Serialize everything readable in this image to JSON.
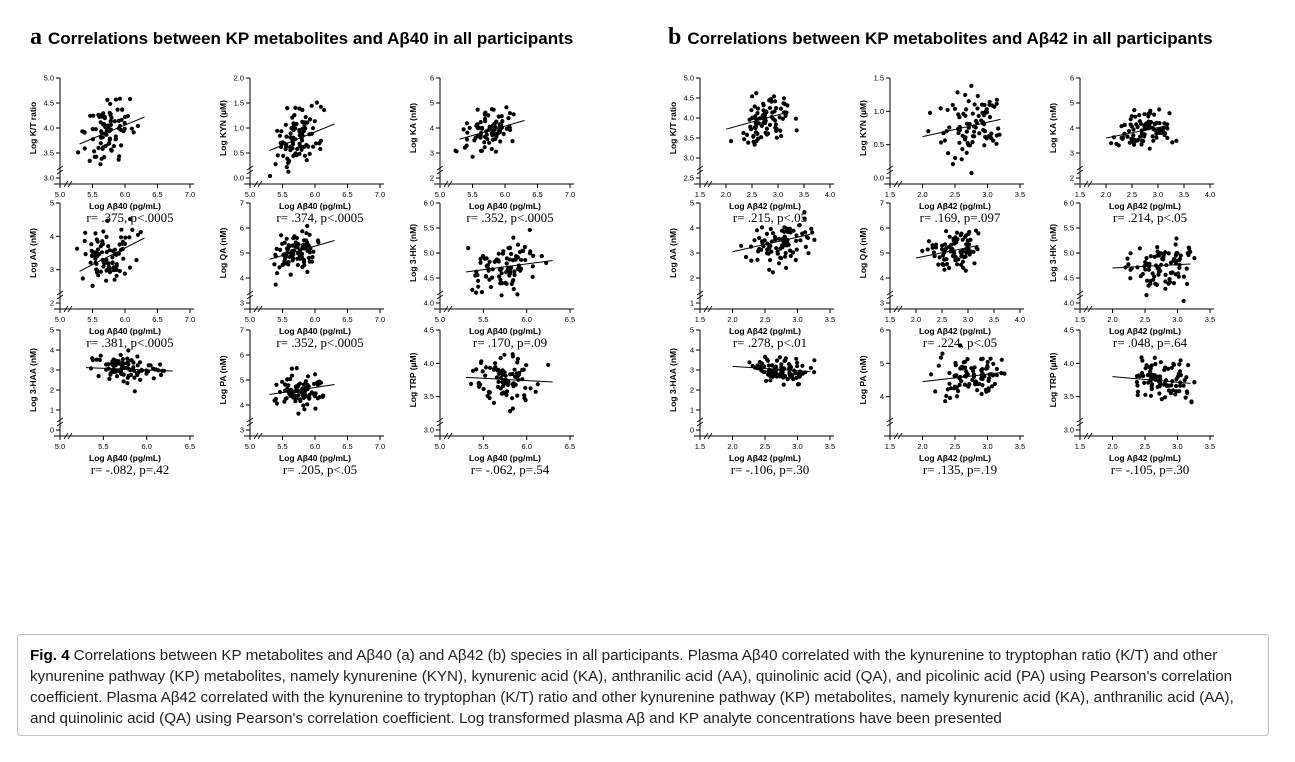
{
  "panels": {
    "a": {
      "letter": "a",
      "title": "Correlations between KP metabolites and Aβ40 in all participants"
    },
    "b": {
      "letter": "b",
      "title": "Correlations between KP metabolites and Aβ42 in all participants"
    }
  },
  "caption": {
    "label": "Fig. 4",
    "text": "Correlations between KP metabolites and Aβ40 (a) and Aβ42 (b) species in all participants. Plasma Aβ40 correlated with the kynurenine to tryptophan ratio (K/T) and other kynurenine pathway (KP) metabolites, namely kynurenine (KYN), kynurenic acid (KA), anthranilic acid (AA), quinolinic acid (QA), and picolinic acid (PA) using Pearson's correlation coefficient. Plasma Aβ42 correlated with the kynurenine to tryptophan (K/T) ratio and other kynurenine pathway (KP) metabolites, namely kynurenic acid (KA), anthranilic acid (AA), and quinolinic acid (QA) using Pearson's correlation coefficient. Log transformed plasma Aβ and KP analyte concentrations have been presented"
  },
  "chart_data": [
    {
      "id": "a-kt",
      "panel": "a",
      "type": "scatter",
      "xlabel": "Log Aβ40 (pg/mL)",
      "ylabel": "Log K/T ratio",
      "xlim": [
        5.0,
        7.0
      ],
      "ylim": [
        3.0,
        5.0
      ],
      "xticks": [
        "5.0",
        "5.5",
        "6.0",
        "6.5",
        "7.0"
      ],
      "yticks": [
        "3.0",
        "3.5",
        "4.0",
        "4.5",
        "5.0"
      ],
      "x_center": 5.75,
      "x_spread": 0.18,
      "y_center": 3.95,
      "y_spread": 0.28,
      "fit": [
        [
          5.3,
          3.68
        ],
        [
          6.3,
          4.22
        ]
      ],
      "annotation": "r= .375, p<.0005"
    },
    {
      "id": "a-kyn",
      "panel": "a",
      "type": "scatter",
      "xlabel": "Log Aβ40 (pg/mL)",
      "ylabel": "Log KYN (µM)",
      "xlim": [
        5.0,
        7.0
      ],
      "ylim": [
        0.0,
        2.0
      ],
      "xticks": [
        "5.0",
        "5.5",
        "6.0",
        "6.5",
        "7.0"
      ],
      "yticks": [
        "0.0",
        "0.5",
        "1.0",
        "1.5",
        "2.0"
      ],
      "x_center": 5.75,
      "x_spread": 0.18,
      "y_center": 0.8,
      "y_spread": 0.28,
      "fit": [
        [
          5.3,
          0.55
        ],
        [
          6.3,
          1.08
        ]
      ],
      "annotation": "r= .374, p<.0005"
    },
    {
      "id": "a-ka",
      "panel": "a",
      "type": "scatter",
      "xlabel": "Log Aβ40 (pg/mL)",
      "ylabel": "Log KA (nM)",
      "xlim": [
        5.0,
        7.0
      ],
      "ylim": [
        2,
        6
      ],
      "xticks": [
        "5.0",
        "5.5",
        "6.0",
        "6.5",
        "7.0"
      ],
      "yticks": [
        "2",
        "3",
        "4",
        "5",
        "6"
      ],
      "x_center": 5.75,
      "x_spread": 0.18,
      "y_center": 3.85,
      "y_spread": 0.4,
      "fit": [
        [
          5.3,
          3.55
        ],
        [
          6.3,
          4.3
        ]
      ],
      "annotation": "r= .352, p<.0005"
    },
    {
      "id": "a-aa",
      "panel": "a",
      "type": "scatter",
      "xlabel": "Log Aβ40 (pg/mL)",
      "ylabel": "Log AA (nM)",
      "xlim": [
        5.0,
        7.0
      ],
      "ylim": [
        2,
        5
      ],
      "xticks": [
        "5.0",
        "5.5",
        "6.0",
        "6.5",
        "7.0"
      ],
      "yticks": [
        "2",
        "3",
        "4",
        "5"
      ],
      "x_center": 5.75,
      "x_spread": 0.18,
      "y_center": 3.45,
      "y_spread": 0.45,
      "fit": [
        [
          5.3,
          2.95
        ],
        [
          6.3,
          3.95
        ]
      ],
      "annotation": "r= .381, p<.0005"
    },
    {
      "id": "a-qa",
      "panel": "a",
      "type": "scatter",
      "xlabel": "Log Aβ40 (pg/mL)",
      "ylabel": "Log QA (nM)",
      "xlim": [
        5.0,
        7.0
      ],
      "ylim": [
        3,
        7
      ],
      "xticks": [
        "5.0",
        "5.5",
        "6.0",
        "6.5",
        "7.0"
      ],
      "yticks": [
        "3",
        "4",
        "5",
        "6",
        "7"
      ],
      "x_center": 5.75,
      "x_spread": 0.18,
      "y_center": 5.05,
      "y_spread": 0.4,
      "fit": [
        [
          5.3,
          4.75
        ],
        [
          6.3,
          5.5
        ]
      ],
      "annotation": "r= .352, p<.0005"
    },
    {
      "id": "a-3hk",
      "panel": "a",
      "type": "scatter",
      "xlabel": "Log Aβ40 (pg/mL)",
      "ylabel": "Log 3-HK (nM)",
      "xlim": [
        5.0,
        6.5
      ],
      "ylim": [
        4.0,
        6.0
      ],
      "xticks": [
        "5.0",
        "5.5",
        "6.0",
        "6.5"
      ],
      "yticks": [
        "4.0",
        "4.5",
        "5.0",
        "5.5",
        "6.0"
      ],
      "x_center": 5.75,
      "x_spread": 0.2,
      "y_center": 4.72,
      "y_spread": 0.25,
      "fit": [
        [
          5.3,
          4.62
        ],
        [
          6.3,
          4.85
        ]
      ],
      "annotation": "r= .170, p=.09"
    },
    {
      "id": "a-3haa",
      "panel": "a",
      "type": "scatter",
      "xlabel": "Log Aβ40 (pg/mL)",
      "ylabel": "Log 3-HAA (nM)",
      "xlim": [
        5.0,
        6.5
      ],
      "ylim": [
        0,
        5
      ],
      "xticks": [
        "5.0",
        "5.5",
        "6.0",
        "6.5"
      ],
      "yticks": [
        "0",
        "1",
        "2",
        "3",
        "4",
        "5"
      ],
      "x_center": 5.75,
      "x_spread": 0.2,
      "y_center": 3.05,
      "y_spread": 0.35,
      "fit": [
        [
          5.3,
          3.12
        ],
        [
          6.3,
          2.95
        ]
      ],
      "annotation": "r= -.082, p=.42"
    },
    {
      "id": "a-pa",
      "panel": "a",
      "type": "scatter",
      "xlabel": "Log Aβ40 (pg/mL)",
      "ylabel": "Log PA (nM)",
      "xlim": [
        5.0,
        7.0
      ],
      "ylim": [
        3,
        7
      ],
      "xticks": [
        "5.0",
        "5.5",
        "6.0",
        "6.5",
        "7.0"
      ],
      "yticks": [
        "3",
        "4",
        "5",
        "6",
        "7"
      ],
      "x_center": 5.75,
      "x_spread": 0.18,
      "y_center": 4.55,
      "y_spread": 0.35,
      "fit": [
        [
          5.3,
          4.42
        ],
        [
          6.3,
          4.82
        ]
      ],
      "annotation": "r= .205, p<.05"
    },
    {
      "id": "a-trp",
      "panel": "a",
      "type": "scatter",
      "xlabel": "Log Aβ40 (pg/mL)",
      "ylabel": "Log TRP (µM)",
      "xlim": [
        5.0,
        6.5
      ],
      "ylim": [
        3.0,
        4.5
      ],
      "xticks": [
        "5.0",
        "5.5",
        "6.0",
        "6.5"
      ],
      "yticks": [
        "3.0",
        "3.5",
        "4.0",
        "4.5"
      ],
      "x_center": 5.75,
      "x_spread": 0.2,
      "y_center": 3.78,
      "y_spread": 0.18,
      "fit": [
        [
          5.3,
          3.79
        ],
        [
          6.3,
          3.72
        ]
      ],
      "annotation": "r= -.062, p=.54"
    },
    {
      "id": "b-kt",
      "panel": "b",
      "type": "scatter",
      "xlabel": "Log Aβ42 (pg/mL)",
      "ylabel": "Log K/T ratio",
      "xlim": [
        1.5,
        4.0
      ],
      "ylim": [
        2.5,
        5.0
      ],
      "xticks": [
        "1.5",
        "2.0",
        "2.5",
        "3.0",
        "3.5",
        "4.0"
      ],
      "yticks": [
        "2.5",
        "3.0",
        "3.5",
        "4.0",
        "4.5",
        "5.0"
      ],
      "x_center": 2.75,
      "x_spread": 0.25,
      "y_center": 3.95,
      "y_spread": 0.28,
      "fit": [
        [
          2.0,
          3.72
        ],
        [
          3.2,
          4.15
        ]
      ],
      "annotation": "r= .215, p<.05"
    },
    {
      "id": "b-kyn",
      "panel": "b",
      "type": "scatter",
      "xlabel": "Log Aβ42 (pg/mL)",
      "ylabel": "Log KYN (µM)",
      "xlim": [
        1.5,
        3.5
      ],
      "ylim": [
        0.0,
        1.5
      ],
      "xticks": [
        "1.5",
        "2.0",
        "2.5",
        "3.0",
        "3.5"
      ],
      "yticks": [
        "0.0",
        "0.5",
        "1.0",
        "1.5"
      ],
      "x_center": 2.75,
      "x_spread": 0.25,
      "y_center": 0.78,
      "y_spread": 0.26,
      "fit": [
        [
          2.0,
          0.62
        ],
        [
          3.2,
          0.88
        ]
      ],
      "annotation": "r= .169, p=.097"
    },
    {
      "id": "b-ka",
      "panel": "b",
      "type": "scatter",
      "xlabel": "Log Aβ42 (pg/mL)",
      "ylabel": "Log KA (nM)",
      "xlim": [
        1.5,
        4.0
      ],
      "ylim": [
        2,
        6
      ],
      "xticks": [
        "1.5",
        "2.0",
        "2.5",
        "3.0",
        "3.5",
        "4.0"
      ],
      "yticks": [
        "2",
        "3",
        "4",
        "5",
        "6"
      ],
      "x_center": 2.75,
      "x_spread": 0.25,
      "y_center": 3.9,
      "y_spread": 0.38,
      "fit": [
        [
          2.0,
          3.6
        ],
        [
          3.2,
          4.1
        ]
      ],
      "annotation": "r= .214, p<.05"
    },
    {
      "id": "b-aa",
      "panel": "b",
      "type": "scatter",
      "xlabel": "Log Aβ42 (pg/mL)",
      "ylabel": "Log AA (nM)",
      "xlim": [
        1.5,
        3.5
      ],
      "ylim": [
        1,
        5
      ],
      "xticks": [
        "1.5",
        "2.0",
        "2.5",
        "3.0",
        "3.5"
      ],
      "yticks": [
        "1",
        "2",
        "3",
        "4",
        "5"
      ],
      "x_center": 2.75,
      "x_spread": 0.25,
      "y_center": 3.45,
      "y_spread": 0.42,
      "fit": [
        [
          2.0,
          3.05
        ],
        [
          3.2,
          3.75
        ]
      ],
      "annotation": "r= .278, p<.01"
    },
    {
      "id": "b-qa",
      "panel": "b",
      "type": "scatter",
      "xlabel": "Log Aβ42 (pg/mL)",
      "ylabel": "Log QA (nM)",
      "xlim": [
        1.5,
        4.0
      ],
      "ylim": [
        3,
        7
      ],
      "xticks": [
        "1.5",
        "2.0",
        "2.5",
        "3.0",
        "3.5",
        "4.0"
      ],
      "yticks": [
        "3",
        "4",
        "5",
        "6",
        "7"
      ],
      "x_center": 2.75,
      "x_spread": 0.25,
      "y_center": 5.1,
      "y_spread": 0.38,
      "fit": [
        [
          2.0,
          4.8
        ],
        [
          3.2,
          5.3
        ]
      ],
      "annotation": "r= .224, p<.05"
    },
    {
      "id": "b-3hk",
      "panel": "b",
      "type": "scatter",
      "xlabel": "Log Aβ42 (pg/mL)",
      "ylabel": "Log 3-HK (nM)",
      "xlim": [
        1.5,
        3.5
      ],
      "ylim": [
        4.0,
        6.0
      ],
      "xticks": [
        "1.5",
        "2.0",
        "2.5",
        "3.0",
        "3.5"
      ],
      "yticks": [
        "4.0",
        "4.5",
        "5.0",
        "5.5",
        "6.0"
      ],
      "x_center": 2.75,
      "x_spread": 0.25,
      "y_center": 4.75,
      "y_spread": 0.25,
      "fit": [
        [
          2.0,
          4.7
        ],
        [
          3.2,
          4.78
        ]
      ],
      "annotation": "r= .048, p=.64"
    },
    {
      "id": "b-3haa",
      "panel": "b",
      "type": "scatter",
      "xlabel": "Log Aβ42 (pg/mL)",
      "ylabel": "Log 3-HAA (nM)",
      "xlim": [
        1.5,
        3.5
      ],
      "ylim": [
        0,
        5
      ],
      "xticks": [
        "1.5",
        "2.0",
        "2.5",
        "3.0",
        "3.5"
      ],
      "yticks": [
        "0",
        "1",
        "2",
        "3",
        "4",
        "5"
      ],
      "x_center": 2.75,
      "x_spread": 0.25,
      "y_center": 3.05,
      "y_spread": 0.33,
      "fit": [
        [
          2.0,
          3.18
        ],
        [
          3.2,
          2.92
        ]
      ],
      "annotation": "r= -.106, p=.30"
    },
    {
      "id": "b-pa",
      "panel": "b",
      "type": "scatter",
      "xlabel": "Log Aβ42 (pg/mL)",
      "ylabel": "Log PA (nM)",
      "xlim": [
        1.5,
        3.5
      ],
      "ylim": [
        3,
        6
      ],
      "xticks": [
        "1.5",
        "2.0",
        "2.5",
        "3.0",
        "3.5"
      ],
      "yticks": [
        "4",
        "5",
        "6"
      ],
      "x_center": 2.75,
      "x_spread": 0.25,
      "y_center": 4.6,
      "y_spread": 0.32,
      "fit": [
        [
          2.0,
          4.45
        ],
        [
          3.2,
          4.72
        ]
      ],
      "annotation": "r= .135, p=.19"
    },
    {
      "id": "b-trp",
      "panel": "b",
      "type": "scatter",
      "xlabel": "Log Aβ42 (pg/mL)",
      "ylabel": "Log TRP (µM)",
      "xlim": [
        1.5,
        3.5
      ],
      "ylim": [
        3.0,
        4.5
      ],
      "xticks": [
        "1.5",
        "2.0",
        "2.5",
        "3.0",
        "3.5"
      ],
      "yticks": [
        "3.0",
        "3.5",
        "4.0",
        "4.5"
      ],
      "x_center": 2.75,
      "x_spread": 0.25,
      "y_center": 3.77,
      "y_spread": 0.18,
      "fit": [
        [
          2.0,
          3.8
        ],
        [
          3.2,
          3.7
        ]
      ],
      "annotation": "r= -.105, p=.30"
    }
  ]
}
